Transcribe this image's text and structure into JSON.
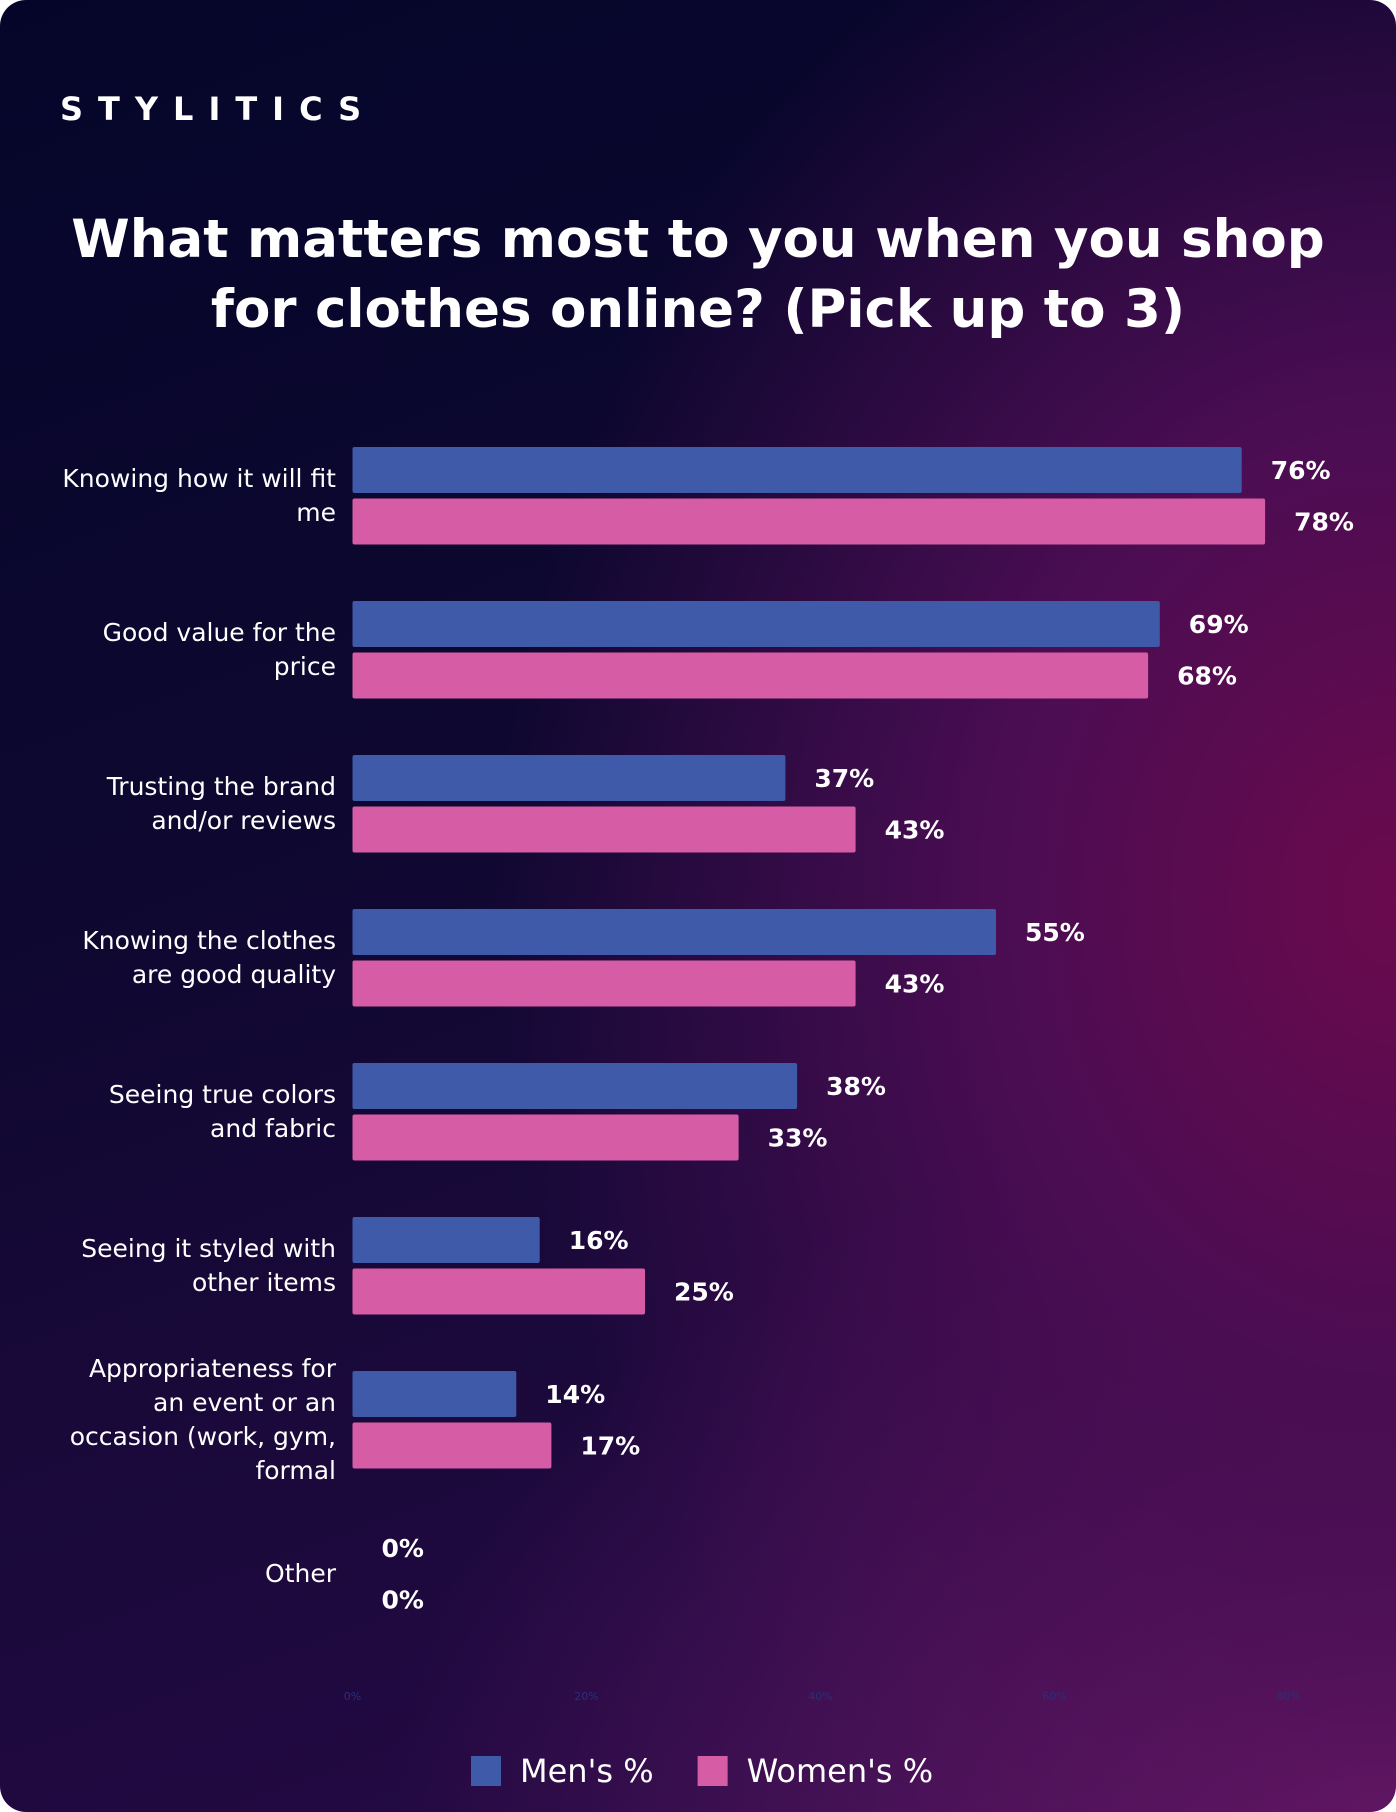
{
  "brand": "STYLITICS",
  "chart_data": {
    "type": "hbar",
    "title": "What matters most to you when you shop for clothes online? (Pick up to 3)",
    "categories": [
      "Knowing how it will fit me",
      "Good value for the price",
      "Trusting the brand and/or reviews",
      "Knowing the clothes are good quality",
      "Seeing true colors and fabric",
      "Seeing it styled with other items",
      "Appropriateness for an event or an occasion (work, gym, formal",
      "Other"
    ],
    "series": [
      {
        "name": "Men's %",
        "color": "#3f5aa8",
        "values": [
          76,
          69,
          37,
          55,
          38,
          16,
          14,
          0
        ],
        "value_labels": [
          "76%",
          "69%",
          "37%",
          "55%",
          "38%",
          "16%",
          "14%",
          "0%"
        ]
      },
      {
        "name": "Women's %",
        "color": "#d65ca6",
        "values": [
          78,
          68,
          43,
          43,
          33,
          25,
          17,
          0
        ],
        "value_labels": [
          "78%",
          "68%",
          "43%",
          "43%",
          "33%",
          "25%",
          "17%",
          "0%"
        ]
      }
    ],
    "xlim": [
      0,
      80
    ],
    "xticks": [
      {
        "value": 0,
        "label": "0%"
      },
      {
        "value": 20,
        "label": "20%"
      },
      {
        "value": 40,
        "label": "40%"
      },
      {
        "value": 60,
        "label": "60%"
      },
      {
        "value": 80,
        "label": "80%"
      }
    ],
    "legend": "bottom"
  }
}
